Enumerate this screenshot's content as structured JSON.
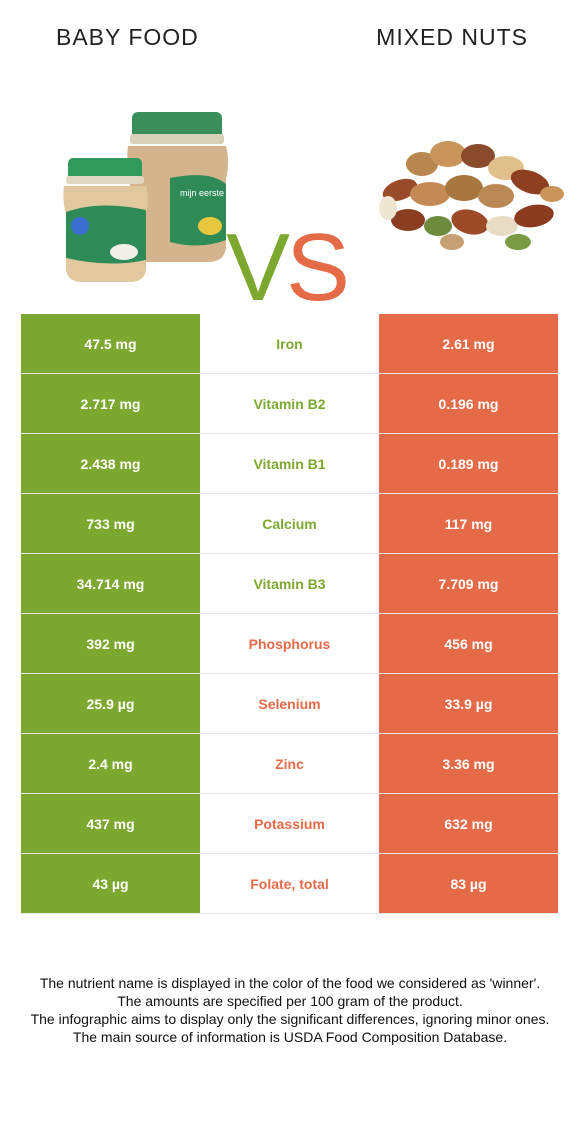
{
  "header": {
    "left_title": "BABY FOOD",
    "right_title": "MIXED NUTS",
    "vs_v": "V",
    "vs_s": "S"
  },
  "images": {
    "left": {
      "depicts": "baby-food-jars",
      "label_text": "mijn eerste hapjes"
    },
    "right": {
      "depicts": "mixed-nuts-pile"
    }
  },
  "colors": {
    "left_food": "#7ca82f",
    "right_food": "#e56a48"
  },
  "rows": [
    {
      "left": "47.5 mg",
      "nutrient": "Iron",
      "right": "2.61 mg",
      "winner": "left"
    },
    {
      "left": "2.717 mg",
      "nutrient": "Vitamin B2",
      "right": "0.196 mg",
      "winner": "left"
    },
    {
      "left": "2.438 mg",
      "nutrient": "Vitamin B1",
      "right": "0.189 mg",
      "winner": "left"
    },
    {
      "left": "733 mg",
      "nutrient": "Calcium",
      "right": "117 mg",
      "winner": "left"
    },
    {
      "left": "34.714 mg",
      "nutrient": "Vitamin B3",
      "right": "7.709 mg",
      "winner": "left"
    },
    {
      "left": "392 mg",
      "nutrient": "Phosphorus",
      "right": "456 mg",
      "winner": "right"
    },
    {
      "left": "25.9 µg",
      "nutrient": "Selenium",
      "right": "33.9 µg",
      "winner": "right"
    },
    {
      "left": "2.4 mg",
      "nutrient": "Zinc",
      "right": "3.36 mg",
      "winner": "right"
    },
    {
      "left": "437 mg",
      "nutrient": "Potassium",
      "right": "632 mg",
      "winner": "right"
    },
    {
      "left": "43 µg",
      "nutrient": "Folate, total",
      "right": "83 µg",
      "winner": "right"
    }
  ],
  "notes": [
    "The nutrient name is displayed in the color of the food we considered as 'winner'.",
    "The amounts are specified per 100 gram of the product.",
    "The infographic aims to display only the significant differences, ignoring minor ones.",
    "The main source of information is USDA Food Composition Database."
  ]
}
